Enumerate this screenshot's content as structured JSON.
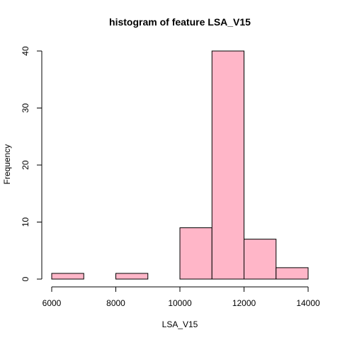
{
  "chart_data": {
    "type": "bar",
    "title": "histogram of feature LSA_V15",
    "xlabel": "LSA_V15",
    "ylabel": "Frequency",
    "bins": [
      {
        "from": 6000,
        "to": 7000,
        "count": 1
      },
      {
        "from": 7000,
        "to": 8000,
        "count": 0
      },
      {
        "from": 8000,
        "to": 9000,
        "count": 1
      },
      {
        "from": 9000,
        "to": 10000,
        "count": 0
      },
      {
        "from": 10000,
        "to": 11000,
        "count": 9
      },
      {
        "from": 11000,
        "to": 12000,
        "count": 40
      },
      {
        "from": 12000,
        "to": 13000,
        "count": 7
      },
      {
        "from": 13000,
        "to": 14000,
        "count": 2
      }
    ],
    "x_ticks": [
      "6000",
      "8000",
      "10000",
      "12000",
      "14000"
    ],
    "y_ticks": [
      "0",
      "10",
      "20",
      "30",
      "40"
    ],
    "xlim": [
      6000,
      14000
    ],
    "ylim": [
      0,
      40
    ],
    "bar_color": "#FFB6C8",
    "grid": false
  }
}
